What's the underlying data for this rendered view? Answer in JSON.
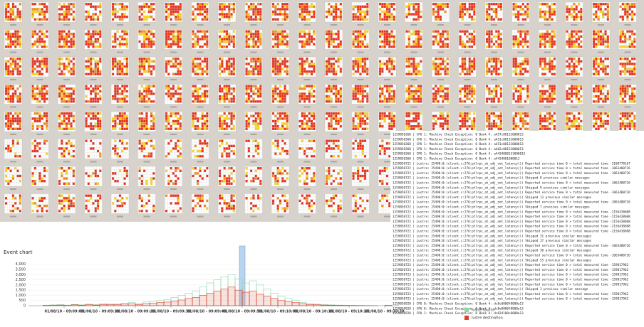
{
  "event_chart": {
    "chart_data": {
      "type": "histogram",
      "title": "Event chart",
      "bins": [
        32930,
        32932,
        32934,
        32936,
        32938,
        32940,
        32942,
        32944,
        32946,
        32948,
        32950,
        32952,
        32954,
        32956,
        32958,
        32960,
        32962,
        32964,
        32966,
        32968,
        32970,
        32972,
        32974,
        32976,
        32978,
        32980,
        32982,
        32984,
        32986,
        32988,
        32990,
        32992,
        32994,
        32996,
        32998,
        33000,
        33002,
        33004,
        33006,
        33008,
        33010,
        33012,
        33014,
        33016,
        33018,
        33020,
        33022,
        33024,
        33026,
        33028,
        33030,
        33032
      ],
      "series": [
        {
          "name": "lustre source",
          "color": "#8fd6a8",
          "values": [
            0,
            0,
            50,
            80,
            100,
            60,
            120,
            80,
            150,
            100,
            200,
            150,
            180,
            250,
            300,
            200,
            350,
            400,
            500,
            600,
            800,
            1000,
            1200,
            1400,
            1800,
            2200,
            2500,
            2800,
            3000,
            2600,
            2200,
            2400,
            2000,
            1600,
            1200,
            900,
            700,
            500,
            300,
            200,
            150,
            100,
            80,
            60,
            50,
            40,
            30,
            20,
            10,
            0,
            50
          ]
        },
        {
          "name": "lustre destination",
          "color": "#d9412b",
          "values": [
            0,
            0,
            30,
            40,
            60,
            30,
            80,
            50,
            100,
            60,
            120,
            90,
            100,
            150,
            180,
            120,
            200,
            250,
            300,
            350,
            450,
            550,
            700,
            800,
            1000,
            1200,
            1400,
            1600,
            1800,
            1500,
            1300,
            1400,
            1100,
            900,
            700,
            500,
            400,
            300,
            200,
            120,
            90,
            60,
            50,
            40,
            30,
            20,
            15,
            10,
            5,
            0,
            30
          ]
        }
      ],
      "xlim": [
        32930,
        33034
      ],
      "xticks": [
        {
          "value": 32940,
          "label": "01/08/10 - 09:09:00"
        },
        {
          "value": 32950,
          "label": "01/08/10 - 09:09:10"
        },
        {
          "value": 32960,
          "label": "01/08/10 - 09:09:20"
        },
        {
          "value": 32970,
          "label": "01/08/10 - 09:09:30"
        },
        {
          "value": 32980,
          "label": "01/08/10 - 09:09:40"
        },
        {
          "value": 32990,
          "label": "01/08/10 - 09:09:50"
        },
        {
          "value": 33000,
          "label": "01/08/10 - 09:10:00"
        },
        {
          "value": 33010,
          "label": "01/08/10 - 09:10:10"
        },
        {
          "value": 33020,
          "label": "01/08/10 - 09:10:20"
        },
        {
          "value": 33030,
          "label": "01/08/10 - 09:10:30"
        }
      ],
      "ylim": [
        0,
        4600
      ],
      "yticks": [
        0,
        500,
        {
          "value": 1000,
          "label": "1,000"
        },
        {
          "value": 1500,
          "label": "1,500"
        },
        {
          "value": 2000,
          "label": "2,000"
        },
        {
          "value": 2500,
          "label": "2,500"
        },
        {
          "value": 3000,
          "label": "3,000"
        },
        {
          "value": 3500,
          "label": "3,500"
        },
        {
          "value": 4000,
          "label": "4,000"
        }
      ]
    }
  },
  "log": {
    "lines": [
      "1259850360 | CPU 1: Machine Check Exception:                    0 Bank 4: a457c00131000013",
      "1259850360 | CPU 1: Machine Check Exception:                    0 Bank 4: a451c00131000013",
      "1259850360 | CPU 1: Machine Check Exception:                    0 Bank 4: a451c00131000013",
      "1259850360 | CPU 1: Machine Check Exception:                    0 Bank 4: a4b2c00131000013",
      "1259850360 | CPU 1: Machine Check Exception:                    0 Bank 4: a4434000131000013",
      "1259850360 | CPU 1: Machine Check Exception:                    0 Bank 4: a4434001000013",
      "1259850722 | Lustre: 25490:0:(client.c:276:ptlrpc_at_adj_net_latency()) Reported service time 0 > total measured time -2108778167",
      "1259850722 | Lustre: 25490:0:(client.c:276:ptlrpc_at_adj_net_latency()) Reported service time 0 > total measured time -1063480726",
      "1259850722 | Lustre: 25490:0:(client.c:276:ptlrpc_at_adj_net_latency()) Reported service time 0 > total measured time -1063480726",
      "1259850722 | Lustre: 25490:0:(client.c:276:ptlrpc_at_adj_net_latency()) Skipped 8 previous similar messages",
      "1259850722 | Lustre: 25490:0:(client.c:276:ptlrpc_at_adj_net_latency()) Reported service time 0 > total measured time -1063480726",
      "1259850722 | Lustre: 25490:0:(client.c:276:ptlrpc_at_adj_net_latency()) Skipped 9 previous similar messages",
      "1259850722 | Lustre: 25490:0:(client.c:276:ptlrpc_at_adj_net_latency()) Reported service time 0 > total measured time -1063480726",
      "1259850722 | Lustre: 25490:0:(client.c:276:ptlrpc_at_adj_net_latency()) Skipped 13 previous similar messages",
      "1259850722 | Lustre: 25490:0:(client.c:276:ptlrpc_at_adj_net_latency()) Reported service time 0 > total measured time -1063480726",
      "1259850722 | Lustre: 25490:0:(client.c:276:ptlrpc_at_adj_net_latency()) Skipped 7 previous similar messages",
      "1259850722 | Lustre: 25490:0:(client.c:276:ptlrpc_at_adj_net_latency()) Reported service time 0 > total measured time -2156438608",
      "1259850722 | Lustre: 25490:0:(client.c:276:ptlrpc_at_adj_net_latency()) Reported service time 0 > total measured time -2156438608",
      "1259850722 | Lustre: 25490:0:(client.c:276:ptlrpc_at_adj_net_latency()) Reported service time 0 > total measured time -2156438608",
      "1259850722 | Lustre: 25490:0:(client.c:276:ptlrpc_at_adj_net_latency()) Reported service time 0 > total measured time -2156438608",
      "1259850722 | Lustre: 25490:0:(client.c:276:ptlrpc_at_adj_net_latency()) Reported service time 0 > total measured time -2156438608",
      "1259850722 | Lustre: 25490:0:(client.c:276:ptlrpc_at_adj_net_latency()) Skipped 31 previous similar messages",
      "1259850722 | Lustre: 25490:0:(client.c:276:ptlrpc_at_adj_net_latency()) Skipped 17 previous similar messages",
      "1259850722 | Lustre: 25490:0:(client.c:276:ptlrpc_at_adj_net_latency()) Reported service time 0 > total measured time -1063480726",
      "1259850722 | Lustre: 25490:0:(client.c:276:ptlrpc_at_adj_net_latency()) Skipped 30 previous similar messages",
      "1259850722 | Lustre: 25490:0:(client.c:276:ptlrpc_at_adj_net_latency()) Reported service time 0 > total measured time -1063480726",
      "1259850723 | Lustre: 25490:0:(client.c:276:ptlrpc_at_adj_net_latency()) Skipped 55 previous similar messages",
      "1259850723 | Lustre: 25490:0:(client.c:276:ptlrpc_at_adj_net_latency()) Reported service time 0 > total measured time -159817962",
      "1259850723 | Lustre: 25490:0:(client.c:276:ptlrpc_at_adj_net_latency()) Reported service time 0 > total measured time -159817962",
      "1259850723 | Lustre: 25490:0:(client.c:276:ptlrpc_at_adj_net_latency()) Reported service time 0 > total measured time -159817962",
      "1259850723 | Lustre: 25490:0:(client.c:276:ptlrpc_at_adj_net_latency()) Reported service time 0 > total measured time -159817962",
      "1259850723 | Lustre: 25490:0:(client.c:276:ptlrpc_at_adj_net_latency()) Reported service time 0 > total measured time -159817962",
      "1259850723 | Lustre: 25490:0:(client.c:276:ptlrpc_at_adj_net_latency()) Skipped 1 previous similar message",
      "1259850723 | Lustre: 25490:0:(client.c:276:ptlrpc_at_adj_net_latency()) Reported service time 0 > total measured time -159817962",
      "1259850723 | Lustre: 25490:0:(client.c:276:ptlrpc_at_adj_net_latency()) Reported service time 0 > total measured time -159817962",
      "1259850920 | CPU 0: Machine Check Exception:                    0 Bank 4: dc8c0000f0000a13",
      "1259850920 | CPU 0: Machine Check Exception:                    0 Bank 4: dc8e0000f0000a13",
      "1259850920 | CPU 1: Machine Check Exception:                    0 Bank 4: dc024100c6000a13"
    ]
  }
}
